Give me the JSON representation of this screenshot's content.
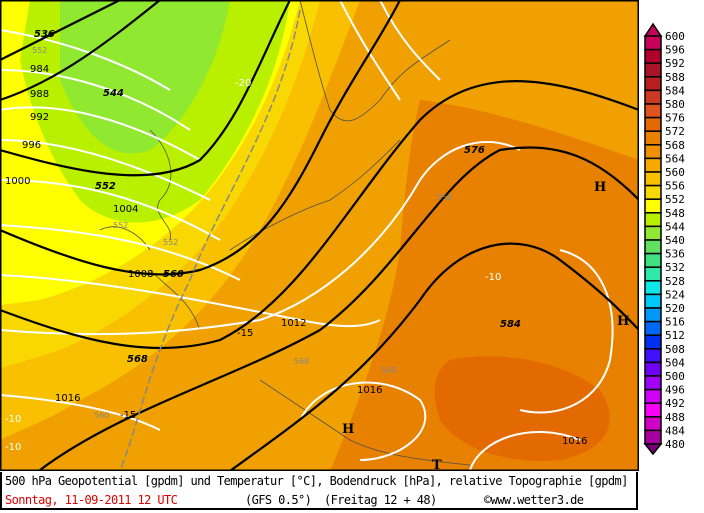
{
  "caption": {
    "title": "500 hPa Geopotential [gpdm] und Temperatur [°C], Bodendruck [hPa], relative Topographie [gpdm]",
    "date": "Sonntag, 11-09-2011  12 UTC",
    "model": "(GFS 0.5°)",
    "run": "(Freitag 12 + 48)",
    "copyright": "©www.wetter3.de"
  },
  "colors": {
    "caption_date": "#e00000",
    "geopotential_contour": "#000000",
    "pressure_contour": "#ffffff",
    "temperature_contour": "#808080"
  },
  "legend": {
    "unit": "gpdm",
    "levels": [
      {
        "v": "600",
        "c": "#c8005a"
      },
      {
        "v": "596",
        "c": "#b0002c"
      },
      {
        "v": "592",
        "c": "#a81428"
      },
      {
        "v": "588",
        "c": "#b82020"
      },
      {
        "v": "584",
        "c": "#cc3a24"
      },
      {
        "v": "580",
        "c": "#e05420"
      },
      {
        "v": "576",
        "c": "#e26a00"
      },
      {
        "v": "572",
        "c": "#e88000"
      },
      {
        "v": "568",
        "c": "#f09000"
      },
      {
        "v": "564",
        "c": "#f8a800"
      },
      {
        "v": "560",
        "c": "#f8c000"
      },
      {
        "v": "556",
        "c": "#f8d800"
      },
      {
        "v": "552",
        "c": "#ffff00"
      },
      {
        "v": "548",
        "c": "#b8f000"
      },
      {
        "v": "544",
        "c": "#90e830"
      },
      {
        "v": "540",
        "c": "#60e060"
      },
      {
        "v": "536",
        "c": "#40e080"
      },
      {
        "v": "532",
        "c": "#30e8a8"
      },
      {
        "v": "528",
        "c": "#10e8e8"
      },
      {
        "v": "524",
        "c": "#00c8f8"
      },
      {
        "v": "520",
        "c": "#0098f8"
      },
      {
        "v": "516",
        "c": "#0068f8"
      },
      {
        "v": "512",
        "c": "#0030f0"
      },
      {
        "v": "508",
        "c": "#4010f8"
      },
      {
        "v": "504",
        "c": "#7000f8"
      },
      {
        "v": "500",
        "c": "#a000f8"
      },
      {
        "v": "496",
        "c": "#d000f8"
      },
      {
        "v": "492",
        "c": "#f800f8"
      },
      {
        "v": "488",
        "c": "#d000c8"
      },
      {
        "v": "484",
        "c": "#a800a0"
      },
      {
        "v": "480",
        "c": "#780078"
      }
    ]
  },
  "map_labels": {
    "geopotential": [
      "536",
      "544",
      "552",
      "560",
      "568",
      "576",
      "584"
    ],
    "pressure": [
      "984",
      "988",
      "992",
      "996",
      "1000",
      "1004",
      "1008",
      "1012",
      "1016",
      "1016",
      "1016"
    ],
    "temperature": [
      "-20",
      "-15",
      "-15",
      "-10",
      "-10",
      "-10"
    ],
    "relative_topography": [
      "552",
      "552",
      "552",
      "558",
      "568",
      "568",
      "560"
    ],
    "pressure_centers": [
      "H",
      "H",
      "H",
      "T"
    ]
  }
}
